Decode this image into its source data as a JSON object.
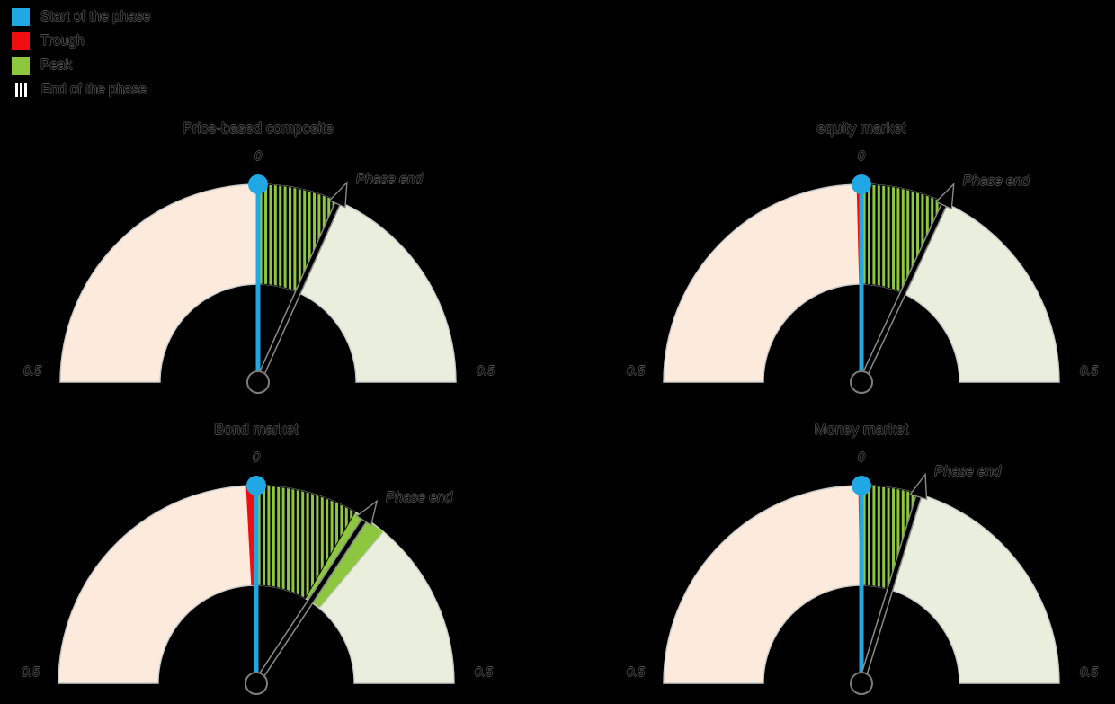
{
  "background_color": "#000000",
  "legend": {
    "items": [
      {
        "label": "Start of the phase",
        "swatch": "solid",
        "color": "#1fa8e4"
      },
      {
        "label": "Trough",
        "swatch": "solid",
        "color": "#f10e10"
      },
      {
        "label": "Peak",
        "swatch": "solid",
        "color": "#8dc63f"
      },
      {
        "label": "End of the phase",
        "swatch": "hatch",
        "color": "#000000"
      }
    ]
  },
  "chart_data": {
    "type": "gauge",
    "subtype": "semicircular-phase-clock",
    "scale": {
      "top_label": "0",
      "left_label": "0.5",
      "right_label": "0.5",
      "range_deg": [
        -90,
        90
      ],
      "orientation": "0 at top, 0.5 at both horizontal extremes"
    },
    "needle_label": "Phase end",
    "gauges": [
      {
        "title": "Price-based composite",
        "needle_deg": 24,
        "peak_end_deg": 24,
        "hatch_end_deg": 24,
        "trough_start_deg": 0,
        "start_of_phase_deg": 0
      },
      {
        "title": "equity market",
        "needle_deg": 25,
        "peak_end_deg": 25,
        "hatch_end_deg": 25,
        "trough_start_deg": -1.4,
        "start_of_phase_deg": 0
      },
      {
        "title": "Bond market",
        "needle_deg": 33.5,
        "peak_end_deg": 40,
        "hatch_end_deg": 30,
        "trough_start_deg": -3,
        "start_of_phase_deg": 0
      },
      {
        "title": "Money market",
        "needle_deg": 17,
        "peak_end_deg": 17,
        "hatch_end_deg": 17,
        "trough_start_deg": -0.9,
        "start_of_phase_deg": 0
      }
    ],
    "colors": {
      "left_half": "#fcebdc",
      "right_half": "#eaeedd",
      "peak_fill": "#8dc63f",
      "trough_fill": "#f10e10",
      "start_line": "#1fa8e4",
      "needle": "#000000",
      "needle_edge": "#8a8a8a",
      "wedge_edge": "#c9c9c9",
      "hatch_stripe": "#000000"
    },
    "legend_position": "upper-left",
    "grid": false
  }
}
